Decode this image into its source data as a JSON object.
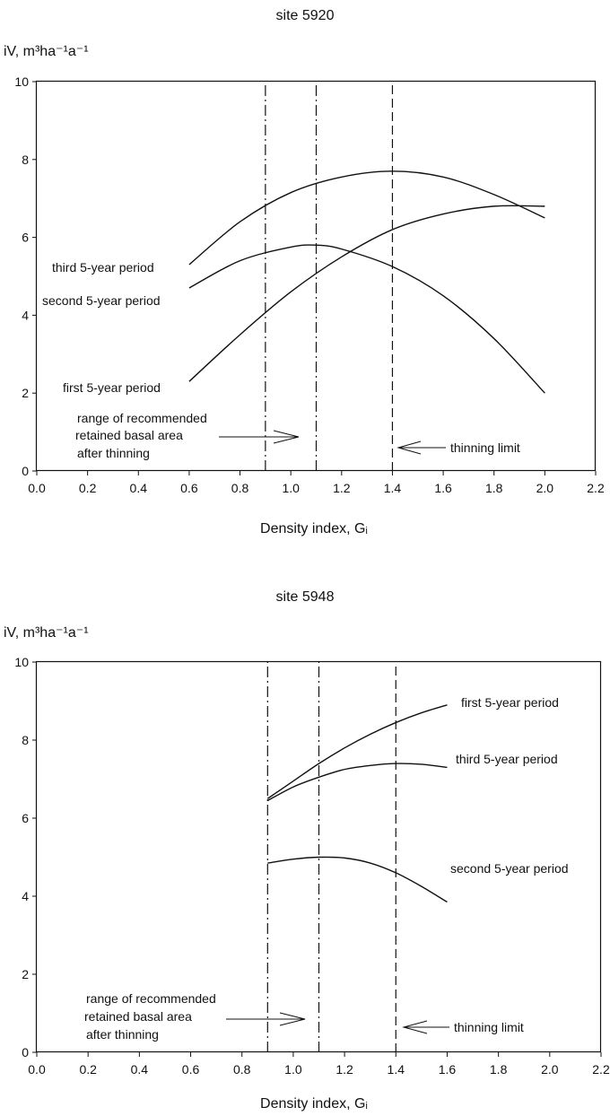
{
  "chart_data": [
    {
      "type": "line",
      "title": "site 5920",
      "ylabel": "iV, m³ha⁻¹a⁻¹",
      "xlabel": "Density index, Gᵢ",
      "xlim": [
        0.0,
        2.2
      ],
      "ylim": [
        0,
        10
      ],
      "x_ticks": [
        "0.0",
        "0.2",
        "0.4",
        "0.6",
        "0.8",
        "1.0",
        "1.2",
        "1.4",
        "1.6",
        "1.8",
        "2.0",
        "2.2"
      ],
      "y_ticks": [
        "0",
        "2",
        "4",
        "6",
        "8",
        "10"
      ],
      "grid": false,
      "series": [
        {
          "name": "first 5-year period",
          "x": [
            0.6,
            0.8,
            1.0,
            1.2,
            1.4,
            1.6,
            1.8,
            2.0
          ],
          "y": [
            2.3,
            3.5,
            4.6,
            5.5,
            6.2,
            6.6,
            6.8,
            6.8
          ]
        },
        {
          "name": "second 5-year period",
          "x": [
            0.6,
            0.8,
            1.0,
            1.1,
            1.2,
            1.4,
            1.6,
            1.8,
            2.0
          ],
          "y": [
            4.7,
            5.4,
            5.75,
            5.8,
            5.7,
            5.25,
            4.5,
            3.4,
            2.0
          ]
        },
        {
          "name": "third 5-year period",
          "x": [
            0.6,
            0.8,
            1.0,
            1.2,
            1.4,
            1.6,
            1.8,
            2.0
          ],
          "y": [
            5.3,
            6.4,
            7.15,
            7.55,
            7.7,
            7.55,
            7.1,
            6.5
          ]
        }
      ],
      "vlines": [
        {
          "x": 0.9,
          "style": "dashdot"
        },
        {
          "x": 1.1,
          "style": "dashdot"
        },
        {
          "x": 1.4,
          "style": "dashed"
        }
      ],
      "annotations": [
        {
          "text": "range of recommended retained basal area after thinning",
          "lines": [
            "range of recommended",
            "retained basal area",
            "after thinning"
          ]
        },
        {
          "text": "thinning limit"
        }
      ],
      "series_labels": [
        {
          "series": "third 5-year period",
          "text": "third 5-year period"
        },
        {
          "series": "second 5-year period",
          "text": "second 5-year period"
        },
        {
          "series": "first 5-year period",
          "text": "first 5-year period"
        }
      ]
    },
    {
      "type": "line",
      "title": "site 5948",
      "ylabel": "iV, m³ha⁻¹a⁻¹",
      "xlabel": "Density index, Gᵢ",
      "xlim": [
        0.0,
        2.2
      ],
      "ylim": [
        0,
        10
      ],
      "x_ticks": [
        "0.0",
        "0.2",
        "0.4",
        "0.6",
        "0.8",
        "1.0",
        "1.2",
        "1.4",
        "1.6",
        "1.8",
        "2.0",
        "2.2"
      ],
      "y_ticks": [
        "0",
        "2",
        "4",
        "6",
        "8",
        "10"
      ],
      "grid": false,
      "series": [
        {
          "name": "first 5-year period",
          "x": [
            0.9,
            1.0,
            1.1,
            1.2,
            1.3,
            1.4,
            1.5,
            1.6
          ],
          "y": [
            6.5,
            6.95,
            7.4,
            7.8,
            8.15,
            8.45,
            8.7,
            8.9
          ]
        },
        {
          "name": "third 5-year period",
          "x": [
            0.9,
            1.0,
            1.1,
            1.2,
            1.3,
            1.4,
            1.5,
            1.6
          ],
          "y": [
            6.45,
            6.8,
            7.05,
            7.25,
            7.35,
            7.4,
            7.38,
            7.3
          ]
        },
        {
          "name": "second 5-year period",
          "x": [
            0.9,
            1.0,
            1.1,
            1.2,
            1.3,
            1.4,
            1.5,
            1.6
          ],
          "y": [
            4.85,
            4.95,
            5.0,
            4.98,
            4.85,
            4.6,
            4.25,
            3.85
          ]
        }
      ],
      "vlines": [
        {
          "x": 0.9,
          "style": "dashdot"
        },
        {
          "x": 1.1,
          "style": "dashdot"
        },
        {
          "x": 1.4,
          "style": "dashed"
        }
      ],
      "annotations": [
        {
          "text": "range of recommended retained basal area after thinning",
          "lines": [
            "range of recommended",
            "retained basal area",
            "after thinning"
          ]
        },
        {
          "text": "thinning limit"
        }
      ],
      "series_labels": [
        {
          "series": "first 5-year period",
          "text": "first 5-year period"
        },
        {
          "series": "third 5-year period",
          "text": "third 5-year period"
        },
        {
          "series": "second 5-year period",
          "text": "second 5-year period"
        }
      ]
    }
  ]
}
